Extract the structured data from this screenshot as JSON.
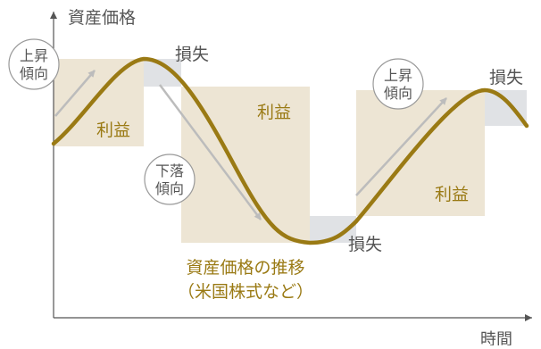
{
  "axes": {
    "y_label": "資産価格",
    "x_label": "時間"
  },
  "trend_badges": {
    "up_1": [
      "上昇",
      "傾向"
    ],
    "down": [
      "下落",
      "傾向"
    ],
    "up_2": [
      "上昇",
      "傾向"
    ]
  },
  "zones": {
    "profit_label": "利益",
    "loss_label": "損失"
  },
  "caption": {
    "line1": "資産価格の推移",
    "line2": "（米国株式など）"
  },
  "colors": {
    "price_line": "#9a7a14",
    "profit_fill": "#ede5d4",
    "loss_fill": "#e0e2e5",
    "profit_text": "#9a7a14",
    "caption_text": "#9a7a14",
    "label_text": "#555555",
    "trend_arrow": "#bcbcbc",
    "axis": "#555555"
  }
}
